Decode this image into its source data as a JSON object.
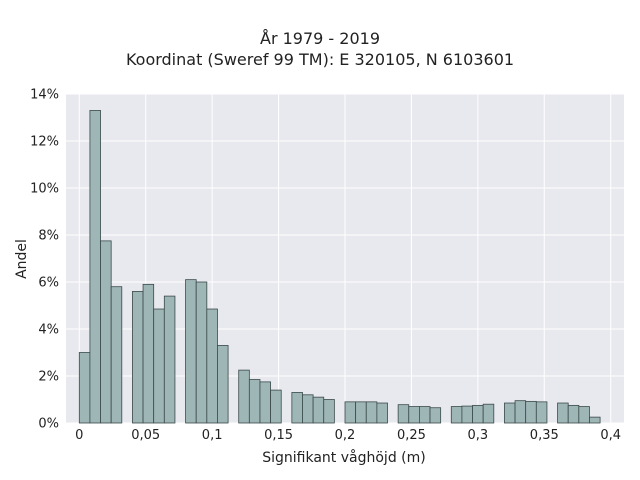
{
  "chart_data": {
    "type": "bar",
    "title_lines": [
      "År 1979 - 2019",
      "Koordinat (Sweref 99 TM): E 320105, N 6103601"
    ],
    "xlabel": "Signifikant våghöjd (m)",
    "ylabel": "Andel",
    "xlim": [
      -0.01,
      0.41
    ],
    "ylim": [
      0,
      14
    ],
    "x_ticks": [
      0,
      0.05,
      0.1,
      0.15,
      0.2,
      0.25,
      0.3,
      0.35,
      0.4
    ],
    "x_tick_labels": [
      "0",
      "0,05",
      "0,1",
      "0,15",
      "0,2",
      "0,25",
      "0,3",
      "0,35",
      "0,4"
    ],
    "y_ticks": [
      0,
      2,
      4,
      6,
      8,
      10,
      12,
      14
    ],
    "y_tick_labels": [
      "0%",
      "2%",
      "4%",
      "6%",
      "8%",
      "10%",
      "12%",
      "14%"
    ],
    "bin_width": 0.008,
    "bins": [
      {
        "x": 0.0,
        "value": 3.0
      },
      {
        "x": 0.008,
        "value": 13.3
      },
      {
        "x": 0.016,
        "value": 7.75
      },
      {
        "x": 0.024,
        "value": 5.8
      },
      {
        "x": 0.04,
        "value": 5.6
      },
      {
        "x": 0.048,
        "value": 5.9
      },
      {
        "x": 0.056,
        "value": 4.85
      },
      {
        "x": 0.064,
        "value": 5.4
      },
      {
        "x": 0.08,
        "value": 6.1
      },
      {
        "x": 0.088,
        "value": 6.0
      },
      {
        "x": 0.096,
        "value": 4.85
      },
      {
        "x": 0.104,
        "value": 3.3
      },
      {
        "x": 0.12,
        "value": 2.25
      },
      {
        "x": 0.128,
        "value": 1.85
      },
      {
        "x": 0.136,
        "value": 1.75
      },
      {
        "x": 0.144,
        "value": 1.4
      },
      {
        "x": 0.16,
        "value": 1.3
      },
      {
        "x": 0.168,
        "value": 1.2
      },
      {
        "x": 0.176,
        "value": 1.1
      },
      {
        "x": 0.184,
        "value": 1.0
      },
      {
        "x": 0.2,
        "value": 0.9
      },
      {
        "x": 0.208,
        "value": 0.9
      },
      {
        "x": 0.216,
        "value": 0.9
      },
      {
        "x": 0.224,
        "value": 0.85
      },
      {
        "x": 0.24,
        "value": 0.78
      },
      {
        "x": 0.248,
        "value": 0.7
      },
      {
        "x": 0.256,
        "value": 0.7
      },
      {
        "x": 0.264,
        "value": 0.65
      },
      {
        "x": 0.28,
        "value": 0.7
      },
      {
        "x": 0.288,
        "value": 0.72
      },
      {
        "x": 0.296,
        "value": 0.75
      },
      {
        "x": 0.304,
        "value": 0.8
      },
      {
        "x": 0.32,
        "value": 0.85
      },
      {
        "x": 0.328,
        "value": 0.95
      },
      {
        "x": 0.336,
        "value": 0.92
      },
      {
        "x": 0.344,
        "value": 0.9
      },
      {
        "x": 0.36,
        "value": 0.85
      },
      {
        "x": 0.368,
        "value": 0.75
      },
      {
        "x": 0.376,
        "value": 0.7
      },
      {
        "x": 0.384,
        "value": 0.25
      }
    ],
    "grid": true,
    "colors": {
      "plot_background": "#e8e8ef",
      "grid": "#ffffff",
      "bar_fill": "#9fb6b7",
      "bar_edge": "#3a4a4a",
      "text": "#222222"
    }
  }
}
